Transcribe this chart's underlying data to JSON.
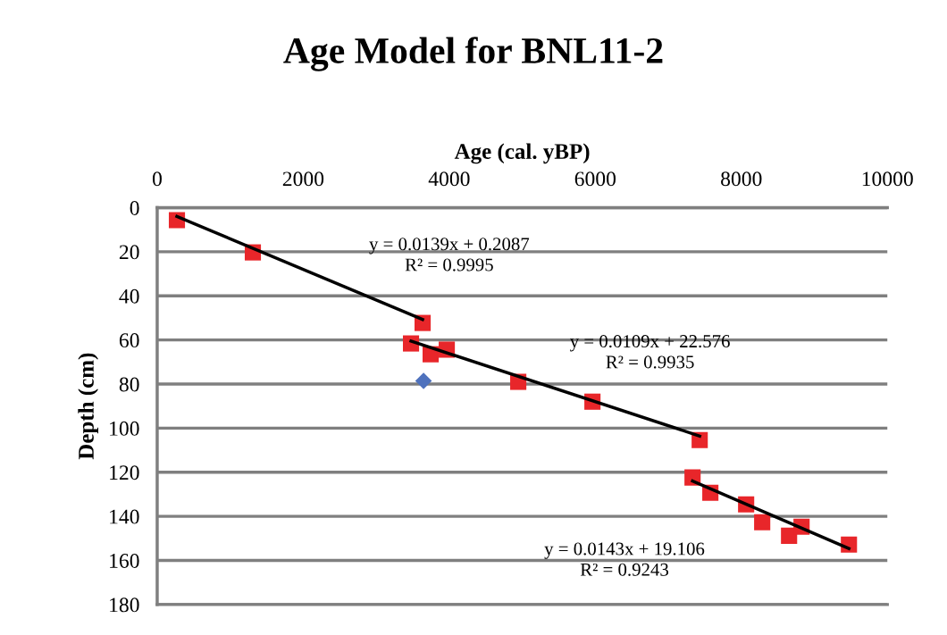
{
  "chart_data": {
    "type": "scatter",
    "title": "Age Model for BNL11-2",
    "xlabel": "Age (cal. yBP)",
    "ylabel": "Depth (cm)",
    "xlim": [
      0,
      10000
    ],
    "xticks": [
      0,
      2000,
      4000,
      6000,
      8000,
      10000
    ],
    "ylim": [
      180,
      0
    ],
    "yticks": [
      0,
      20,
      40,
      60,
      80,
      100,
      120,
      140,
      160,
      180
    ],
    "grid": "y",
    "legend": false,
    "series": [
      {
        "color": "#e8262a",
        "marker": "square",
        "x": [
          270,
          1310,
          3635,
          3476,
          3745,
          3966,
          4945,
          5961,
          7430,
          7332,
          7576,
          8066,
          8286,
          8654,
          8825,
          9474
        ],
        "values": [
          5.7,
          20.3,
          52.3,
          61.6,
          66.5,
          64.4,
          79,
          88,
          105.4,
          122.4,
          129.3,
          134.6,
          142.7,
          148.8,
          144.7,
          152.8
        ]
      },
      {
        "color": "#4f72bd",
        "marker": "diamond",
        "x": [
          3648
        ],
        "values": [
          78.6
        ]
      },
      {
        "type": "line",
        "color": "#000000",
        "marker": "none",
        "x": [
          270,
          3635
        ],
        "values": [
          4.0,
          50.7
        ]
      },
      {
        "type": "line",
        "color": "#000000",
        "marker": "none",
        "x": [
          3476,
          7430
        ],
        "values": [
          60.5,
          103.6
        ]
      },
      {
        "type": "line",
        "color": "#000000",
        "marker": "none",
        "x": [
          7332,
          9474
        ],
        "values": [
          124.0,
          154.6
        ]
      }
    ],
    "annotations": [
      "y = 0.0139x + 0.2087\nR² = 0.9995",
      "y = 0.0109x + 22.576\nR² = 0.9935",
      "y = 0.0143x + 19.106\nR² = 0.9243"
    ]
  }
}
